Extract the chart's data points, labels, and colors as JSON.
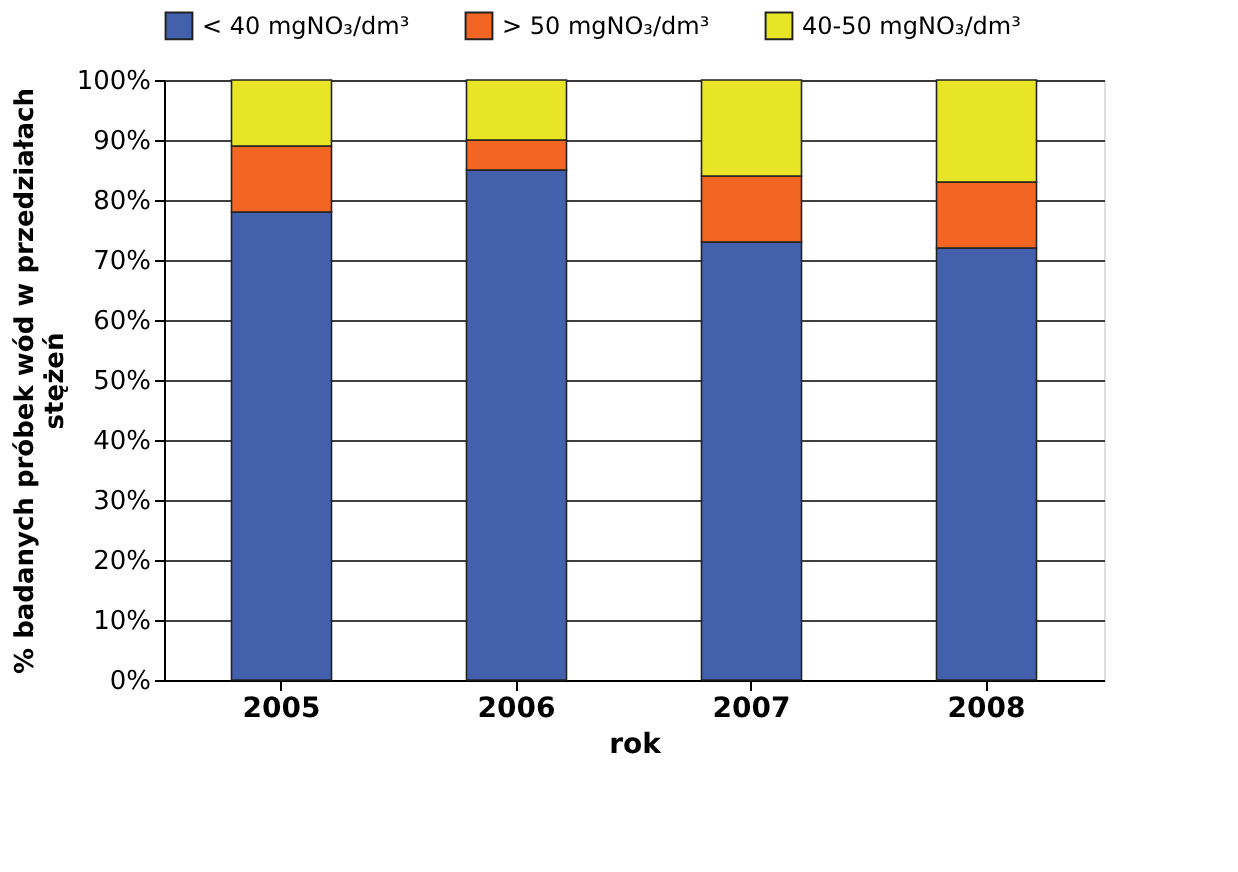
{
  "chart_data": {
    "type": "bar",
    "stacked": true,
    "xlabel": "rok",
    "ylabel": "% badanych próbek wód w przedziałach stężeń",
    "categories": [
      "2005",
      "2006",
      "2007",
      "2008"
    ],
    "series": [
      {
        "name": "< 40 mgNO₃/dm³",
        "color": "#4360ad",
        "values": [
          78,
          85,
          73,
          72
        ]
      },
      {
        "name": "> 50 mgNO₃/dm³",
        "color": "#f26522",
        "values": [
          11,
          5,
          11,
          11
        ]
      },
      {
        "name": "40-50 mgNO₃/dm³",
        "color": "#e8e526",
        "values": [
          11,
          10,
          16,
          17
        ]
      }
    ],
    "ylim": [
      0,
      100
    ],
    "yticks": [
      {
        "value": 0,
        "label": "0%"
      },
      {
        "value": 10,
        "label": "10%"
      },
      {
        "value": 20,
        "label": "20%"
      },
      {
        "value": 30,
        "label": "30%"
      },
      {
        "value": 40,
        "label": "40%"
      },
      {
        "value": 50,
        "label": "50%"
      },
      {
        "value": 60,
        "label": "60%"
      },
      {
        "value": 70,
        "label": "70%"
      },
      {
        "value": 80,
        "label": "80%"
      },
      {
        "value": 90,
        "label": "90%"
      },
      {
        "value": 100,
        "label": "100%"
      }
    ],
    "grid": "y",
    "legend": "top"
  }
}
